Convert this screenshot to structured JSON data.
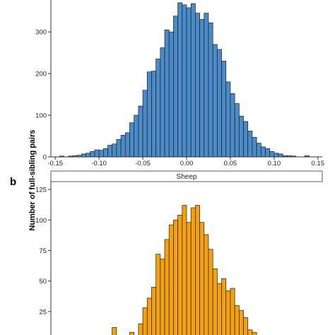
{
  "figure": {
    "ylabel": "Number of full-sibling pairs"
  },
  "chart_data": [
    {
      "type": "bar",
      "panel_label": "",
      "strip_title": "",
      "color": "#4a8bc9",
      "bin_edges": [
        -0.15,
        -0.145,
        -0.14,
        -0.135,
        -0.13,
        -0.125,
        -0.12,
        -0.115,
        -0.11,
        -0.105,
        -0.1,
        -0.095,
        -0.09,
        -0.085,
        -0.08,
        -0.075,
        -0.07,
        -0.065,
        -0.06,
        -0.055,
        -0.05,
        -0.045,
        -0.04,
        -0.035,
        -0.03,
        -0.025,
        -0.02,
        -0.015,
        -0.01,
        -0.005,
        0.0,
        0.005,
        0.01,
        0.015,
        0.02,
        0.025,
        0.03,
        0.035,
        0.04,
        0.045,
        0.05,
        0.055,
        0.06,
        0.065,
        0.07,
        0.075,
        0.08,
        0.085,
        0.09,
        0.095,
        0.1,
        0.105,
        0.11,
        0.115,
        0.12,
        0.125,
        0.13,
        0.135,
        0.14
      ],
      "counts": [
        0,
        2,
        0,
        2,
        3,
        4,
        7,
        9,
        13,
        17,
        16,
        20,
        28,
        31,
        42,
        52,
        58,
        82,
        100,
        122,
        160,
        204,
        206,
        235,
        262,
        305,
        300,
        338,
        370,
        365,
        358,
        368,
        345,
        330,
        345,
        322,
        270,
        258,
        230,
        180,
        152,
        128,
        98,
        85,
        62,
        47,
        33,
        24,
        20,
        13,
        9,
        7,
        3,
        3,
        2,
        0,
        0,
        3
      ],
      "xticks": [
        "-0.15",
        "-0.10",
        "-0.05",
        "0.00",
        "0.05",
        "0.10",
        "0.15"
      ],
      "xtick_values": [
        -0.15,
        -0.1,
        -0.05,
        0.0,
        0.05,
        0.1,
        0.15
      ],
      "yticks": [
        "0",
        "100",
        "200",
        "300"
      ],
      "ytick_values": [
        0,
        100,
        200,
        300
      ],
      "xlim": [
        -0.155,
        0.155
      ],
      "ylim": [
        0,
        380
      ]
    },
    {
      "type": "bar",
      "panel_label": "b",
      "strip_title": "Sheep",
      "color": "#f5a20a",
      "bin_edges": [
        -0.135,
        -0.13,
        -0.125,
        -0.12,
        -0.115,
        -0.11,
        -0.105,
        -0.1,
        -0.095,
        -0.09,
        -0.085,
        -0.08,
        -0.075,
        -0.07,
        -0.065,
        -0.06,
        -0.055,
        -0.05,
        -0.045,
        -0.04,
        -0.035,
        -0.03,
        -0.025,
        -0.02,
        -0.015,
        -0.01,
        -0.005,
        0.0,
        0.005,
        0.01,
        0.015,
        0.02,
        0.025,
        0.03,
        0.035,
        0.04,
        0.045,
        0.05,
        0.055,
        0.06,
        0.065,
        0.07,
        0.075,
        0.08,
        0.085,
        0.09,
        0.095,
        0.1,
        0.105,
        0.11,
        0.115
      ],
      "counts": [
        0,
        0,
        0,
        0,
        0,
        0,
        0,
        0,
        0,
        0,
        12,
        0,
        0,
        0,
        8,
        4,
        15,
        28,
        36,
        45,
        72,
        68,
        84,
        96,
        100,
        104,
        112,
        98,
        110,
        112,
        98,
        88,
        76,
        60,
        48,
        52,
        42,
        44,
        30,
        26,
        20,
        10,
        8,
        4,
        0,
        0,
        0,
        0,
        0,
        0
      ],
      "yticks": [
        "25",
        "50",
        "75",
        "100",
        "125"
      ],
      "ytick_values": [
        25,
        50,
        75,
        100,
        125
      ],
      "xlim": [
        -0.155,
        0.155
      ],
      "ylim": [
        0,
        132
      ]
    }
  ]
}
